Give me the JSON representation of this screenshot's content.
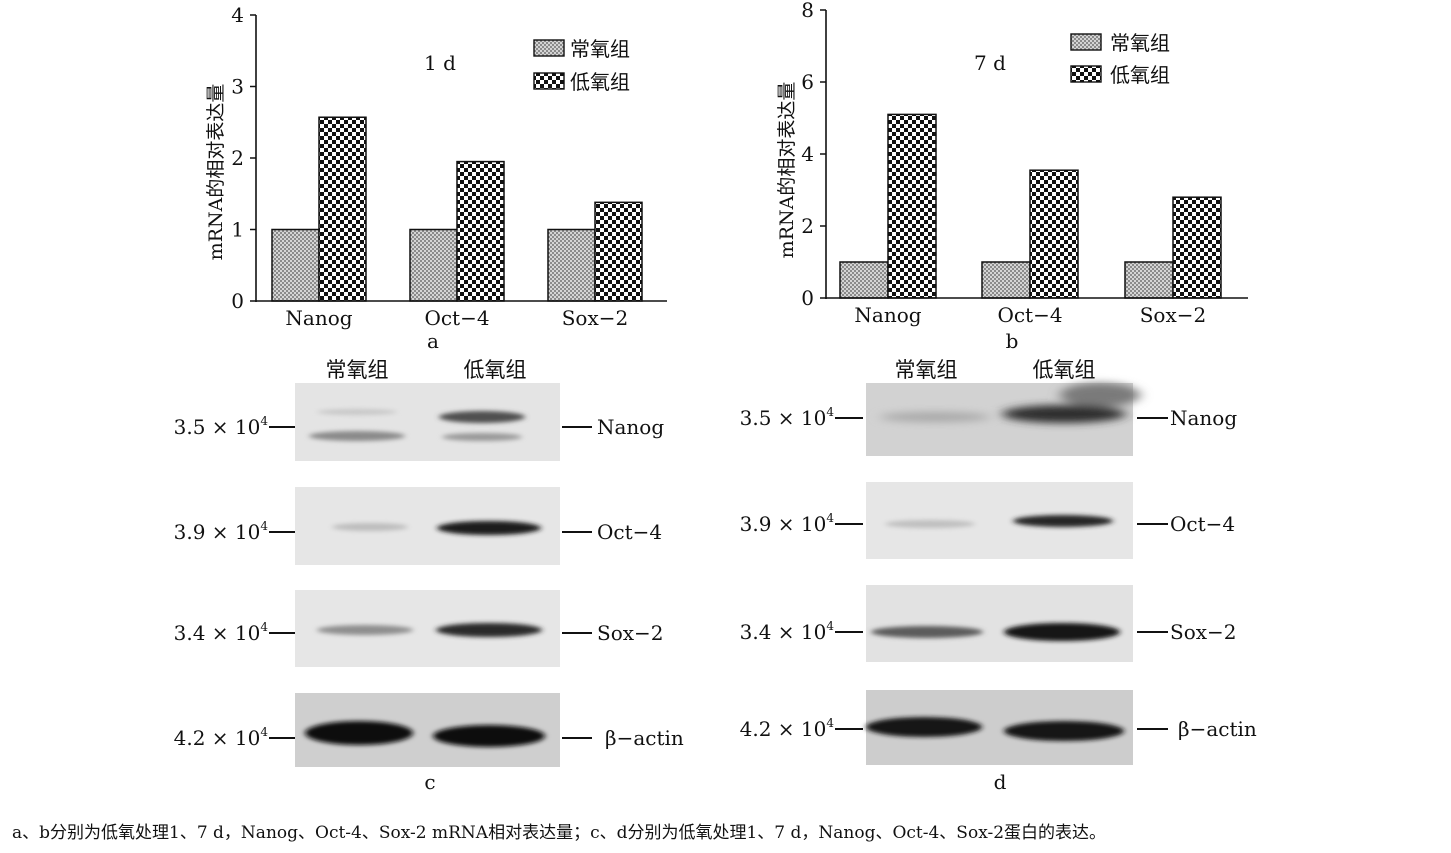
{
  "chart_data": [
    {
      "type": "bar",
      "panel_label": "a",
      "annotation": "1 d",
      "ylabel": "mRNA的相对表达量",
      "ylim": [
        0,
        4
      ],
      "yticks": [
        "0",
        "1",
        "2",
        "3",
        "4"
      ],
      "categories": [
        "Nanog",
        "Oct−4",
        "Sox−2"
      ],
      "series": [
        {
          "name": "常氧组",
          "values": [
            1.0,
            1.0,
            1.0
          ],
          "pattern": "fine-grid"
        },
        {
          "name": "低氧组",
          "values": [
            2.57,
            1.95,
            1.38
          ],
          "pattern": "checker"
        }
      ],
      "legend_position": "top-right",
      "grid": false
    },
    {
      "type": "bar",
      "panel_label": "b",
      "annotation": "7 d",
      "ylabel": "mRNA的相对表达量",
      "ylim": [
        0,
        8
      ],
      "yticks": [
        "0",
        "2",
        "4",
        "6",
        "8"
      ],
      "categories": [
        "Nanog",
        "Oct−4",
        "Sox−2"
      ],
      "series": [
        {
          "name": "常氧组",
          "values": [
            1.0,
            1.0,
            1.0
          ],
          "pattern": "fine-grid"
        },
        {
          "name": "低氧组",
          "values": [
            5.1,
            3.55,
            2.8
          ],
          "pattern": "checker"
        }
      ],
      "legend_position": "top-right",
      "grid": false
    }
  ],
  "blots": [
    {
      "panel_label": "c",
      "columns": [
        "常氧组",
        "低氧组"
      ],
      "rows": [
        {
          "mw_mant": "3.5 × 10",
          "mw_exp": "4",
          "protein": "Nanog"
        },
        {
          "mw_mant": "3.9 × 10",
          "mw_exp": "4",
          "protein": "Oct−4"
        },
        {
          "mw_mant": "3.4 × 10",
          "mw_exp": "4",
          "protein": "Sox−2"
        },
        {
          "mw_mant": "4.2 × 10",
          "mw_exp": "4",
          "protein": "β−actin"
        }
      ]
    },
    {
      "panel_label": "d",
      "columns": [
        "常氧组",
        "低氧组"
      ],
      "rows": [
        {
          "mw_mant": "3.5 × 10",
          "mw_exp": "4",
          "protein": "Nanog"
        },
        {
          "mw_mant": "3.9 × 10",
          "mw_exp": "4",
          "protein": "Oct−4"
        },
        {
          "mw_mant": "3.4 × 10",
          "mw_exp": "4",
          "protein": "Sox−2"
        },
        {
          "mw_mant": "4.2 × 10",
          "mw_exp": "4",
          "protein": "β−actin"
        }
      ]
    }
  ],
  "caption": "a、b分别为低氧处理1、7 d，Nanog、Oct-4、Sox-2 mRNA相对表达量；c、d分别为低氧处理1、7 d，Nanog、Oct-4、Sox-2蛋白的表达。"
}
